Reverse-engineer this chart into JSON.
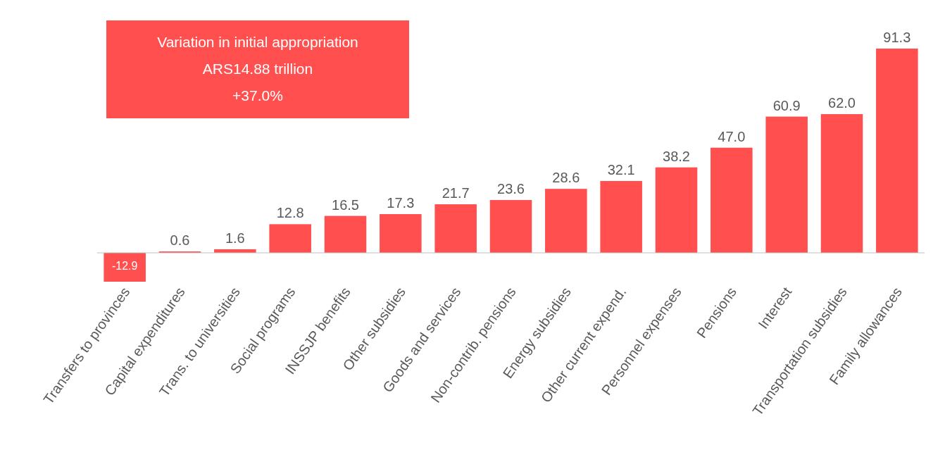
{
  "chart_data": {
    "type": "bar",
    "categories": [
      "Transfers to provinces",
      "Capital expenditures",
      "Trans. to universities",
      "Social programs",
      "INSSJP benefits",
      "Other subsidies",
      "Goods and services",
      "Non-contrib. pensions",
      "Energy subsidies",
      "Other current expend.",
      "Personnel expenses",
      "Pensions",
      "Interest",
      "Transportation subsidies",
      "Family allowances"
    ],
    "values": [
      -12.9,
      0.6,
      1.6,
      12.8,
      16.5,
      17.3,
      21.7,
      23.6,
      28.6,
      32.1,
      38.2,
      47.0,
      60.9,
      62.0,
      91.3
    ],
    "value_labels": [
      "-12.9",
      "0.6",
      "1.6",
      "12.8",
      "16.5",
      "17.3",
      "21.7",
      "23.6",
      "28.6",
      "32.1",
      "38.2",
      "47.0",
      "60.9",
      "62.0",
      "91.3"
    ],
    "color": "#ff4f4f",
    "annotations": [
      "Variation in initial appropriation",
      "ARS14.88  trillion",
      "+37.0%"
    ]
  }
}
